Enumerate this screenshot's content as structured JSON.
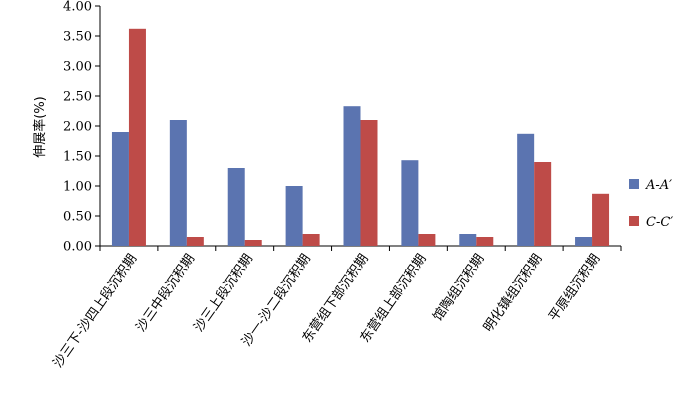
{
  "chart_data": {
    "type": "bar",
    "title": "",
    "xlabel": "",
    "ylabel": "伸展率(%)",
    "ylim": [
      0,
      4
    ],
    "yticks": [
      "0.00",
      "0.50",
      "1.00",
      "1.50",
      "2.00",
      "2.50",
      "3.00",
      "3.50",
      "4.00"
    ],
    "grid": false,
    "legend_position": "right",
    "categories": [
      "沙三下-沙四上段沉积期",
      "沙三中段沉积期",
      "沙三上段沉积期",
      "沙一-沙二段沉积期",
      "东营组下部沉积期",
      "东营组上部沉积期",
      "馆陶组沉积期",
      "明化镇组沉积期",
      "平原组沉积期"
    ],
    "series": [
      {
        "name": "A-A′",
        "color": "#5B74B0",
        "values": [
          1.9,
          2.1,
          1.3,
          1.0,
          2.33,
          1.43,
          0.2,
          1.87,
          0.15
        ]
      },
      {
        "name": "C-C′",
        "color": "#BE4B48",
        "values": [
          3.62,
          0.15,
          0.1,
          0.2,
          2.1,
          0.2,
          0.15,
          1.4,
          0.87
        ]
      }
    ]
  }
}
